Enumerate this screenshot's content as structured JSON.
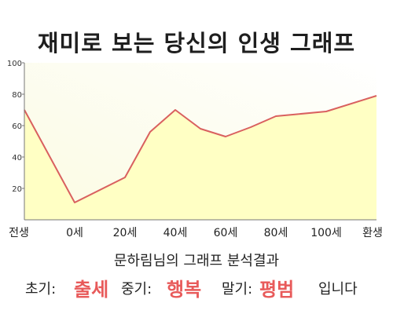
{
  "chart_data": {
    "type": "area",
    "title": "재미로 보는 당신의 인생 그래프",
    "x_labels": [
      "전생",
      "0세",
      "20세",
      "40세",
      "60세",
      "80세",
      "100세",
      "환생"
    ],
    "points": [
      {
        "x": -20,
        "y": 70
      },
      {
        "x": 0,
        "y": 11
      },
      {
        "x": 20,
        "y": 27
      },
      {
        "x": 30,
        "y": 56
      },
      {
        "x": 40,
        "y": 70
      },
      {
        "x": 50,
        "y": 58
      },
      {
        "x": 60,
        "y": 53
      },
      {
        "x": 70,
        "y": 59
      },
      {
        "x": 80,
        "y": 66
      },
      {
        "x": 100,
        "y": 69
      },
      {
        "x": 120,
        "y": 79
      }
    ],
    "y_ticks": [
      "20",
      "40",
      "60",
      "80",
      "100"
    ],
    "ylim": [
      0,
      100
    ],
    "grid": false,
    "colors": {
      "line": "#d9605f",
      "fill": "#ffffc4",
      "axis": "#777777"
    }
  },
  "result": {
    "heading": "문하림님의 그래프 분석결과",
    "early_label": "초기:",
    "early_value": "출세",
    "middle_label": "중기:",
    "middle_value": "행복",
    "late_label": "말기:",
    "late_value": "평범",
    "suffix": "입니다",
    "accent_color": "#e85a5a"
  }
}
